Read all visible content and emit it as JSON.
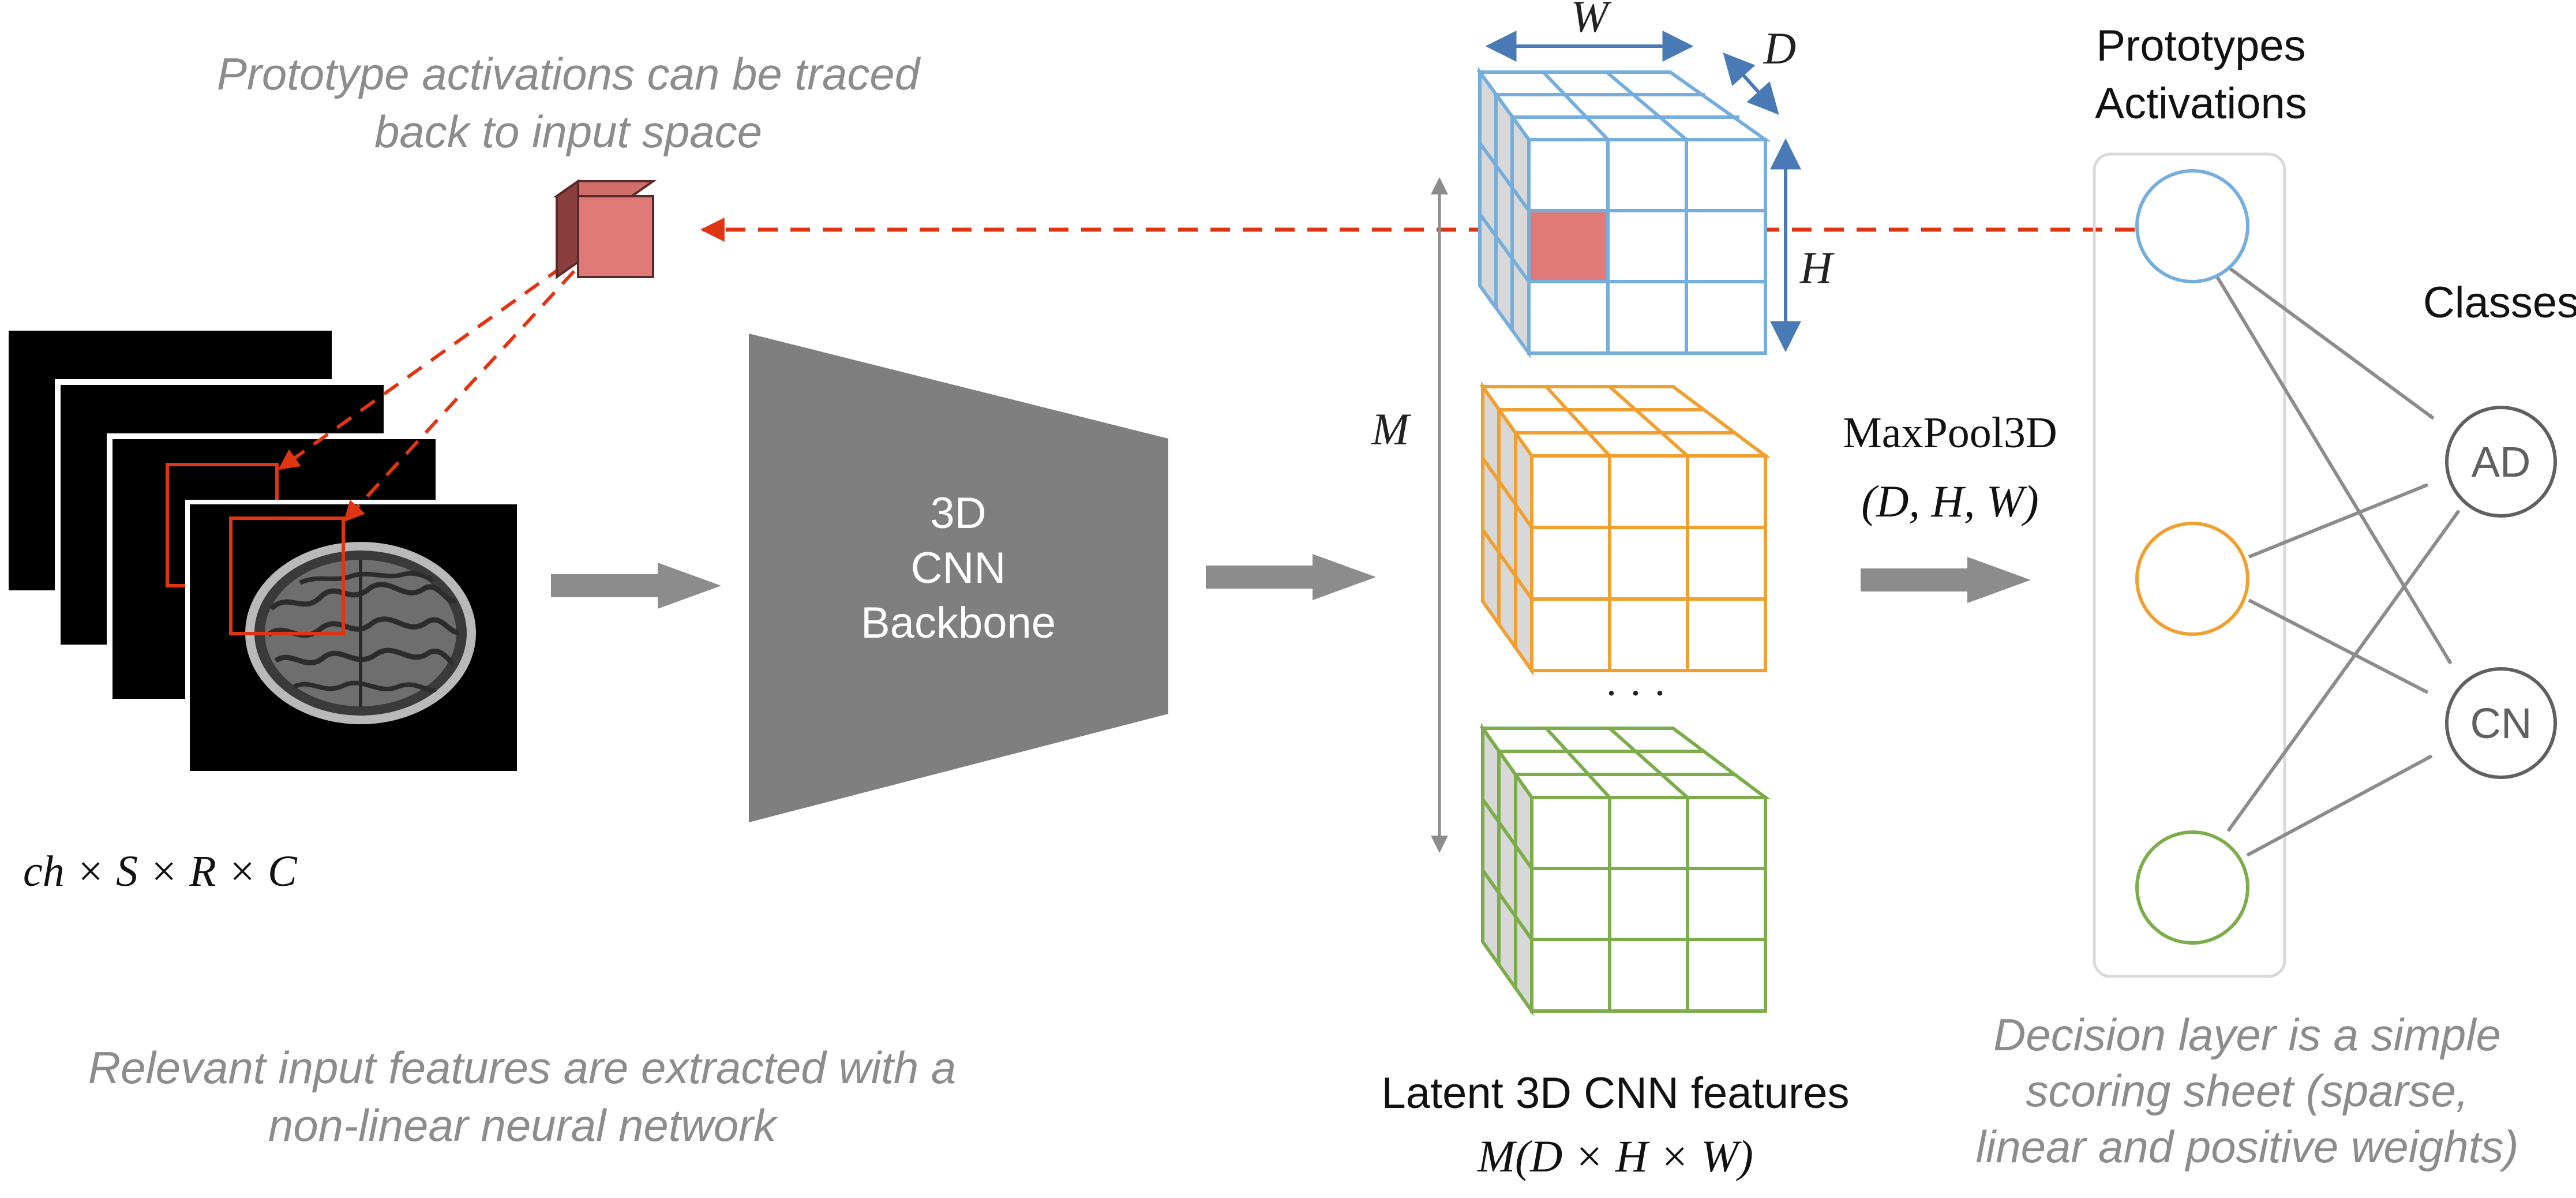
{
  "captions": {
    "trace_line1": "Prototype activations can be traced",
    "trace_line2": "back to input space",
    "extract_line1": "Relevant input features are extracted with a",
    "extract_line2": "non-linear neural network",
    "decision_line1": "Decision layer is a simple",
    "decision_line2": "scoring sheet (sparse,",
    "decision_line3": "linear and positive weights)"
  },
  "input": {
    "dims_label": "ch × S × R × C"
  },
  "backbone": {
    "line1": "3D",
    "line2": "CNN",
    "line3": "Backbone"
  },
  "latent": {
    "dim_w": "W",
    "dim_d": "D",
    "dim_h": "H",
    "dim_m": "M",
    "ellipsis": "· · ·",
    "title": "Latent 3D CNN features",
    "formula": "M(D × H × W)"
  },
  "pooling": {
    "op": "MaxPool3D",
    "args": "(D, H, W)"
  },
  "prototypes": {
    "title_line1": "Prototypes",
    "title_line2": "Activations"
  },
  "classes": {
    "title": "Classes",
    "items": [
      "AD",
      "CN"
    ]
  },
  "colors": {
    "arrow_gray": "#8c8c8c",
    "backbone_gray": "#7f7f7f",
    "trace_red": "#e03512",
    "highlight_red": "#e07a78",
    "cube_blue": "#75aedc",
    "cube_orange": "#f0a030",
    "cube_green": "#7cad4a",
    "dim_blue": "#4a7ab5",
    "caption_gray": "#8c8c8c",
    "node_dark": "#606060"
  }
}
